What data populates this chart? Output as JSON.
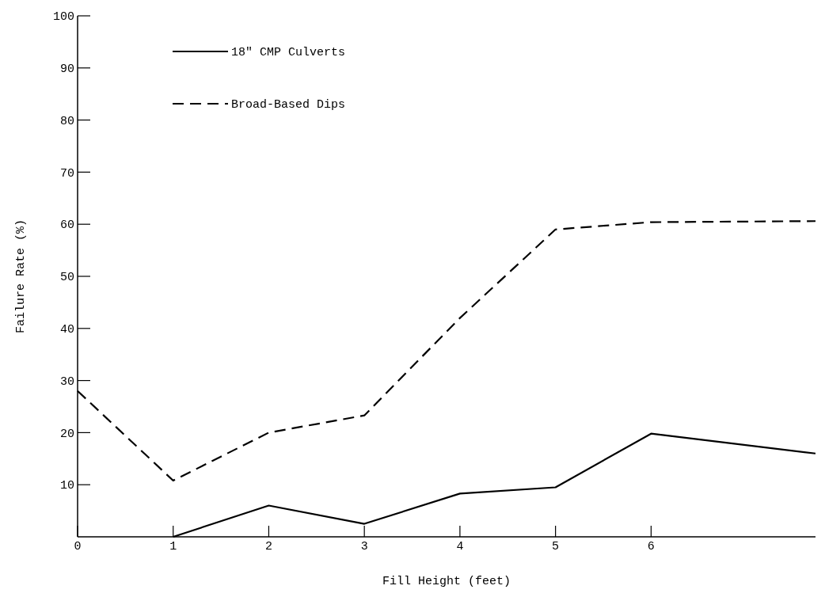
{
  "chart_data": {
    "type": "line",
    "xlabel": "Fill Height (feet)",
    "ylabel": "Failure Rate (%)",
    "xlim": [
      0,
      7.72
    ],
    "xticks": [
      0,
      1,
      2,
      3,
      4,
      5,
      6
    ],
    "ylim": [
      0,
      100
    ],
    "yticks": [
      10,
      20,
      30,
      40,
      50,
      60,
      70,
      80,
      90,
      100
    ],
    "grid": false,
    "legend": "top left",
    "marker": "none",
    "series": [
      {
        "name": "18\" CMP Culverts",
        "color": "#000000",
        "line_style": "solid",
        "x": [
          1,
          2,
          3,
          4,
          5,
          6,
          7.72
        ],
        "values": [
          0,
          6,
          2.5,
          8.3,
          9.5,
          19.8,
          16
        ]
      },
      {
        "name": "Broad-Based Dips",
        "color": "#000000",
        "line_style": "dashed",
        "x": [
          0,
          1,
          2,
          3,
          4,
          5,
          6,
          7.72
        ],
        "values": [
          28,
          10.8,
          20,
          23.3,
          42,
          59,
          60.4,
          60.6
        ]
      }
    ]
  }
}
